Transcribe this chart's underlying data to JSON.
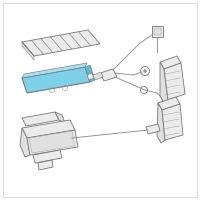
{
  "background_color": "#ffffff",
  "border_color": "#dddddd",
  "highlight_color": "#7ecfe8",
  "highlight_top": "#a8dff0",
  "highlight_side": "#5bbad4",
  "line_color": "#888888",
  "component_fill": "#ebebeb",
  "component_fill2": "#e0e0e0",
  "component_edge": "#999999",
  "dark_edge": "#777777",
  "figsize": [
    2.0,
    2.0
  ],
  "dpi": 100
}
